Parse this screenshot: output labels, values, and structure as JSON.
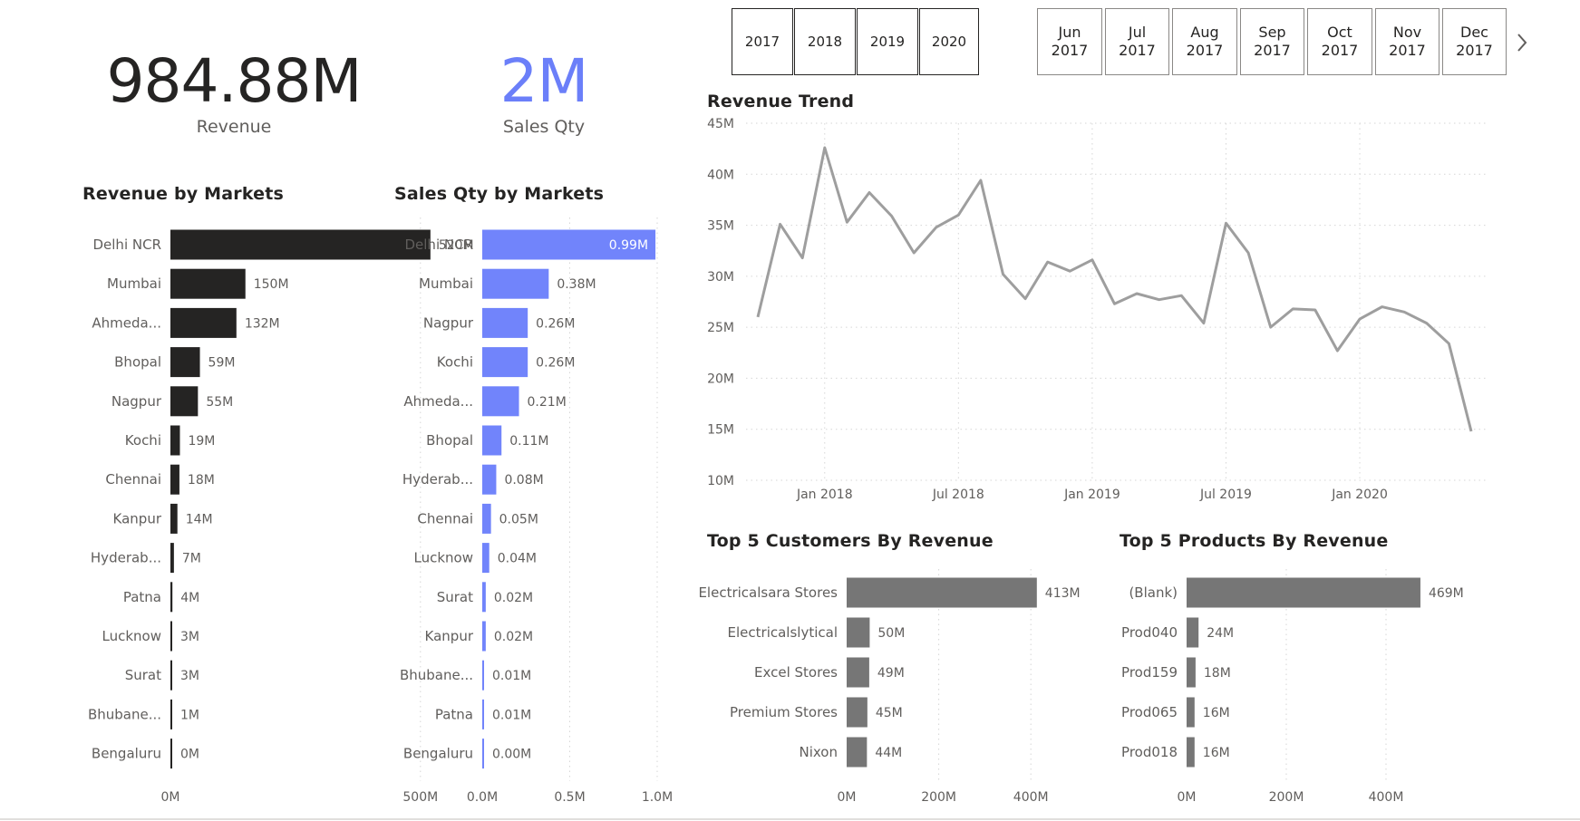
{
  "kpis": {
    "revenue": {
      "value": "984.88M",
      "label": "Revenue",
      "color": "#252423"
    },
    "sales_qty": {
      "value": "2M",
      "label": "Sales Qty",
      "color": "#6b7ff9"
    }
  },
  "year_slicer": [
    "2017",
    "2018",
    "2019",
    "2020"
  ],
  "month_slicer": [
    "Jun\n2017",
    "Jul\n2017",
    "Aug\n2017",
    "Sep\n2017",
    "Oct\n2017",
    "Nov\n2017",
    "Dec\n2017"
  ],
  "month_slicer_next_icon": "chevron-right-icon",
  "colors": {
    "revenue_bar": "#252423",
    "qty_bar": "#7184fb",
    "grey_bar": "#767676",
    "trend_line": "#9e9e9e",
    "label": "#605e5c"
  },
  "chart_data": [
    {
      "id": "revenue_by_markets",
      "type": "bar",
      "orientation": "horizontal",
      "title": "Revenue by Markets",
      "categories": [
        "Delhi NCR",
        "Mumbai",
        "Ahmeda...",
        "Bhopal",
        "Nagpur",
        "Kochi",
        "Chennai",
        "Kanpur",
        "Hyderab...",
        "Patna",
        "Lucknow",
        "Surat",
        "Bhubane...",
        "Bengaluru"
      ],
      "values": [
        520,
        150,
        132,
        59,
        55,
        19,
        18,
        14,
        7,
        4,
        3,
        3,
        1,
        0
      ],
      "data_labels": [
        "520M",
        "150M",
        "132M",
        "59M",
        "55M",
        "19M",
        "18M",
        "14M",
        "7M",
        "4M",
        "3M",
        "3M",
        "1M",
        "0M"
      ],
      "xlim": [
        0,
        620
      ],
      "xticks": [
        0,
        500
      ],
      "xtick_labels": [
        "0M",
        "500M"
      ],
      "grid": true
    },
    {
      "id": "sales_qty_by_markets",
      "type": "bar",
      "orientation": "horizontal",
      "title": "Sales Qty by Markets",
      "categories": [
        "Delhi NCR",
        "Mumbai",
        "Nagpur",
        "Kochi",
        "Ahmeda...",
        "Bhopal",
        "Hyderab...",
        "Chennai",
        "Lucknow",
        "Surat",
        "Kanpur",
        "Bhubane...",
        "Patna",
        "Bengaluru"
      ],
      "values": [
        0.99,
        0.38,
        0.26,
        0.26,
        0.21,
        0.11,
        0.08,
        0.05,
        0.04,
        0.02,
        0.02,
        0.01,
        0.01,
        0.0
      ],
      "data_labels": [
        "0.99M",
        "0.38M",
        "0.26M",
        "0.26M",
        "0.21M",
        "0.11M",
        "0.08M",
        "0.05M",
        "0.04M",
        "0.02M",
        "0.02M",
        "0.01M",
        "0.01M",
        "0.00M"
      ],
      "xlim": [
        0,
        1.0
      ],
      "xticks": [
        0,
        0.5,
        1.0
      ],
      "xtick_labels": [
        "0.0M",
        "0.5M",
        "1.0M"
      ],
      "grid": true
    },
    {
      "id": "revenue_trend",
      "type": "line",
      "title": "Revenue Trend",
      "x": [
        "2017-10",
        "2017-11",
        "2017-12",
        "2018-01",
        "2018-02",
        "2018-03",
        "2018-04",
        "2018-05",
        "2018-06",
        "2018-07",
        "2018-08",
        "2018-09",
        "2018-10",
        "2018-11",
        "2018-12",
        "2019-01",
        "2019-02",
        "2019-03",
        "2019-04",
        "2019-05",
        "2019-06",
        "2019-07",
        "2019-08",
        "2019-09",
        "2019-10",
        "2019-11",
        "2019-12",
        "2020-01",
        "2020-02",
        "2020-03",
        "2020-04",
        "2020-05",
        "2020-06"
      ],
      "values": [
        26.0,
        35.1,
        31.8,
        42.6,
        35.3,
        38.2,
        35.9,
        32.3,
        34.8,
        36.0,
        39.4,
        30.2,
        27.8,
        31.4,
        30.5,
        31.6,
        27.3,
        28.3,
        27.7,
        28.1,
        25.4,
        35.2,
        32.3,
        25.0,
        26.8,
        26.7,
        22.7,
        25.8,
        27.0,
        26.5,
        25.4,
        23.4,
        14.8
      ],
      "ylim": [
        10,
        45
      ],
      "yticks": [
        10,
        15,
        20,
        25,
        30,
        35,
        40,
        45
      ],
      "ytick_labels": [
        "10M",
        "15M",
        "20M",
        "25M",
        "30M",
        "35M",
        "40M",
        "45M"
      ],
      "xticks": [
        "2018-01",
        "2018-07",
        "2019-01",
        "2019-07",
        "2020-01"
      ],
      "xtick_labels": [
        "Jan 2018",
        "Jul 2018",
        "Jan 2019",
        "Jul 2019",
        "Jan 2020"
      ],
      "grid": true
    },
    {
      "id": "top5_customers",
      "type": "bar",
      "orientation": "horizontal",
      "title": "Top 5 Customers By Revenue",
      "categories": [
        "Electricalsara Stores",
        "Electricalslytical",
        "Excel Stores",
        "Premium Stores",
        "Nixon"
      ],
      "values": [
        413,
        50,
        49,
        45,
        44
      ],
      "data_labels": [
        "413M",
        "50M",
        "49M",
        "45M",
        "44M"
      ],
      "xlim": [
        0,
        500
      ],
      "xticks": [
        0,
        200,
        400
      ],
      "xtick_labels": [
        "0M",
        "200M",
        "400M"
      ],
      "grid": true
    },
    {
      "id": "top5_products",
      "type": "bar",
      "orientation": "horizontal",
      "title": "Top 5 Products By Revenue",
      "categories": [
        "(Blank)",
        "Prod040",
        "Prod159",
        "Prod065",
        "Prod018"
      ],
      "values": [
        469,
        24,
        18,
        16,
        16
      ],
      "data_labels": [
        "469M",
        "24M",
        "18M",
        "16M",
        "16M"
      ],
      "xlim": [
        0,
        580
      ],
      "xticks": [
        0,
        200,
        400
      ],
      "xtick_labels": [
        "0M",
        "200M",
        "400M"
      ],
      "grid": true
    }
  ]
}
